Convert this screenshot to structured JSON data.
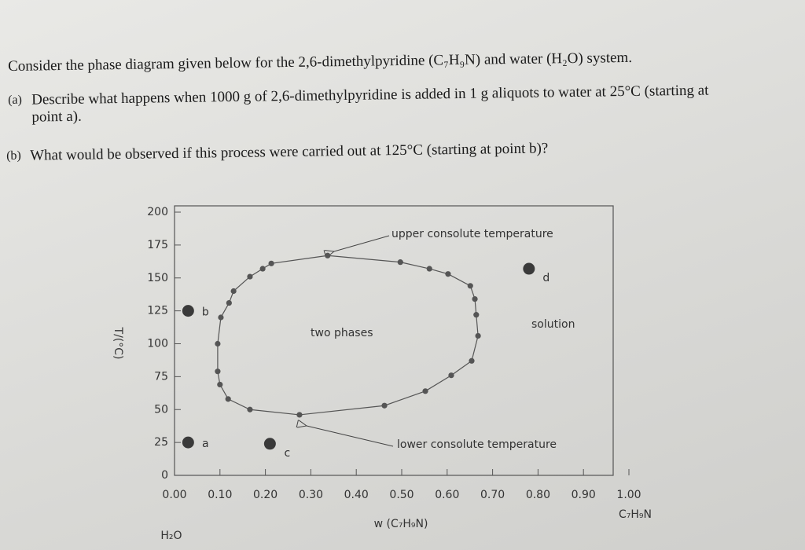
{
  "questions": {
    "intro": "Consider the phase diagram given below for the 2,6-dimethylpyridine (C₇H₉N) and water (H₂O) system.",
    "a_label": "(a)",
    "a": "Describe what happens when 1000 g of 2,6-dimethylpyridine is added in 1 g aliquots to water at 25°C (starting at point a).",
    "b_label": "(b)",
    "b": "What would be observed if this process were carried out at 125°C (starting at point b)?"
  },
  "chart_data": {
    "type": "scatter",
    "x_label": "w (C₇H₉N)",
    "y_label": "T/(°C)",
    "left_label": "H₂O",
    "right_label": "C₇H₉N",
    "annotations": [
      "upper consolute temperature",
      "lower consolute temperature",
      "two phases",
      "solution"
    ],
    "color": "#555555",
    "loop": {
      "x": [
        0.095,
        0.102,
        0.12,
        0.13,
        0.166,
        0.194,
        0.213,
        0.337,
        0.497,
        0.561,
        0.602,
        0.651,
        0.661,
        0.664,
        0.668,
        0.654,
        0.609,
        0.552,
        0.462,
        0.275,
        0.166,
        0.118,
        0.1,
        0.095
      ],
      "y": [
        100,
        120,
        131,
        140,
        151,
        157,
        161,
        167,
        162,
        157,
        153,
        144,
        134,
        122,
        106,
        87,
        76,
        64,
        53,
        46,
        50,
        58,
        69,
        79
      ]
    },
    "points": {
      "labels": [
        "a",
        "b",
        "c",
        "d"
      ],
      "x": [
        0.03,
        0.03,
        0.21,
        0.78
      ],
      "y": [
        25,
        125,
        24,
        157
      ]
    },
    "xlim": [
      0,
      1
    ],
    "ylim": [
      0,
      200
    ],
    "xticks": [
      {
        "value": 0,
        "label": "0.00"
      },
      {
        "value": 0.1,
        "label": "0.10"
      },
      {
        "value": 0.2,
        "label": "0.20"
      },
      {
        "value": 0.3,
        "label": "0.30"
      },
      {
        "value": 0.4,
        "label": "0.40"
      },
      {
        "value": 0.5,
        "label": "0.50"
      },
      {
        "value": 0.6,
        "label": "0.60"
      },
      {
        "value": 0.7,
        "label": "0.70"
      },
      {
        "value": 0.8,
        "label": "0.80"
      },
      {
        "value": 0.9,
        "label": "0.90"
      },
      {
        "value": 1,
        "label": "1.00"
      }
    ],
    "yticks": [
      0,
      25,
      50,
      75,
      100,
      125,
      150,
      175,
      200
    ]
  }
}
